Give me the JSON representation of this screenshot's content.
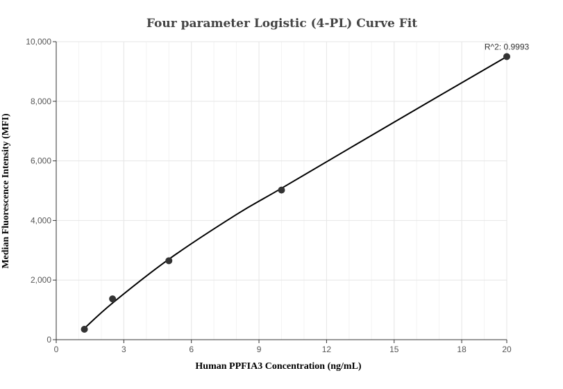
{
  "chart_data": {
    "type": "scatter",
    "title": "Four parameter Logistic (4-PL) Curve Fit",
    "xlabel": "Human PPFIA3 Concentration  (ng/mL)",
    "ylabel": "Median Fluorescence Intensity (MFI)",
    "xlim": [
      0,
      20
    ],
    "ylim": [
      0,
      10000
    ],
    "x_ticks": [
      0,
      3,
      6,
      9,
      12,
      15,
      18,
      20
    ],
    "x_tick_labels": [
      "0",
      "3",
      "6",
      "9",
      "12",
      "15",
      "18",
      "20"
    ],
    "y_ticks": [
      0,
      2000,
      4000,
      6000,
      8000,
      10000
    ],
    "y_tick_labels": [
      "0",
      "2,000",
      "4,000",
      "6,000",
      "8,000",
      "10,000"
    ],
    "grid": true,
    "series": [
      {
        "points": [
          {
            "x": 1.25,
            "y": 350
          },
          {
            "x": 2.5,
            "y": 1370
          },
          {
            "x": 5,
            "y": 2650
          },
          {
            "x": 10,
            "y": 5020
          },
          {
            "x": 20,
            "y": 9500
          }
        ],
        "fit_curve": [
          {
            "x": 1.25,
            "y": 380
          },
          {
            "x": 2.5,
            "y": 1230
          },
          {
            "x": 5,
            "y": 2700
          },
          {
            "x": 8,
            "y": 4200
          },
          {
            "x": 10,
            "y": 5080
          },
          {
            "x": 15,
            "y": 7300
          },
          {
            "x": 20,
            "y": 9500
          }
        ],
        "color": "#000000",
        "marker_color": "#333333"
      }
    ],
    "annotation": {
      "text": "R^2: 0.9993",
      "x": 20,
      "y": 9500
    }
  }
}
